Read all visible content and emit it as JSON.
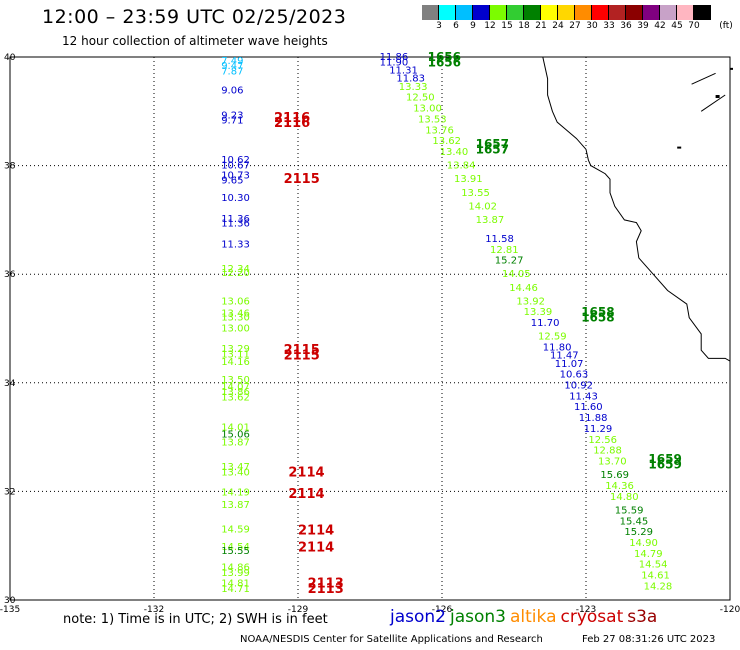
{
  "header": {
    "title": "12:00 – 23:59 UTC 02/25/2023",
    "subtitle": "12 hour collection of altimeter wave heights"
  },
  "scale": {
    "unit": "(ft)",
    "bins": [
      {
        "label": "3",
        "color": "#808080"
      },
      {
        "label": "6",
        "color": "#00ffff"
      },
      {
        "label": "9",
        "color": "#00bfff"
      },
      {
        "label": "12",
        "color": "#0000cd"
      },
      {
        "label": "15",
        "color": "#7cfc00"
      },
      {
        "label": "18",
        "color": "#32cd32"
      },
      {
        "label": "21",
        "color": "#008000"
      },
      {
        "label": "24",
        "color": "#ffff00"
      },
      {
        "label": "27",
        "color": "#ffd700"
      },
      {
        "label": "30",
        "color": "#ff8c00"
      },
      {
        "label": "33",
        "color": "#ff0000"
      },
      {
        "label": "36",
        "color": "#b22222"
      },
      {
        "label": "39",
        "color": "#8b0000"
      },
      {
        "label": "42",
        "color": "#800080"
      },
      {
        "label": "45",
        "color": "#c8a2c8"
      },
      {
        "label": "70",
        "color": "#ffb6c1"
      },
      {
        "label": "",
        "color": "#000000"
      }
    ]
  },
  "map": {
    "lon_ticks": [
      "-135",
      "-132",
      "-129",
      "-126",
      "-123",
      "-120"
    ],
    "lat_ticks": [
      "30",
      "32",
      "34",
      "36",
      "38",
      "40"
    ],
    "lon_range": [
      -135,
      -120
    ],
    "lat_range": [
      30,
      40
    ],
    "track_colors": {
      "jason2": "#0000cd",
      "jason3": "#008000",
      "altika": "#ff8c00",
      "cryosat": "#cc0000",
      "s3a": "#990000"
    },
    "western_track": [
      {
        "lon": -130.6,
        "lat": 39.93,
        "v": "7.49",
        "c": "#00bfff"
      },
      {
        "lon": -130.6,
        "lat": 39.83,
        "v": "9.47",
        "c": "#00bfff"
      },
      {
        "lon": -130.6,
        "lat": 39.73,
        "v": "7.87",
        "c": "#00bfff"
      },
      {
        "lon": -130.6,
        "lat": 39.38,
        "v": "9.06",
        "c": "#0000cd"
      },
      {
        "lon": -130.6,
        "lat": 38.92,
        "v": "9.23",
        "c": "#0000cd"
      },
      {
        "lon": -130.6,
        "lat": 38.83,
        "v": "9.71",
        "c": "#0000cd"
      },
      {
        "lon": -130.6,
        "lat": 38.1,
        "v": "10.62",
        "c": "#0000cd"
      },
      {
        "lon": -130.6,
        "lat": 38.0,
        "v": "10.67",
        "c": "#0000cd"
      },
      {
        "lon": -130.6,
        "lat": 37.82,
        "v": "10.73",
        "c": "#0000cd"
      },
      {
        "lon": -130.6,
        "lat": 37.73,
        "v": "9.65",
        "c": "#0000cd"
      },
      {
        "lon": -130.6,
        "lat": 37.4,
        "v": "10.30",
        "c": "#0000cd"
      },
      {
        "lon": -130.6,
        "lat": 37.02,
        "v": "11.36",
        "c": "#0000cd"
      },
      {
        "lon": -130.6,
        "lat": 36.93,
        "v": "11.36",
        "c": "#0000cd"
      },
      {
        "lon": -130.6,
        "lat": 36.55,
        "v": "11.33",
        "c": "#0000cd"
      },
      {
        "lon": -130.6,
        "lat": 36.1,
        "v": "12.34",
        "c": "#7cfc00"
      },
      {
        "lon": -130.6,
        "lat": 36.02,
        "v": "12.20",
        "c": "#7cfc00"
      },
      {
        "lon": -130.6,
        "lat": 35.5,
        "v": "13.06",
        "c": "#7cfc00"
      },
      {
        "lon": -130.6,
        "lat": 35.28,
        "v": "13.46",
        "c": "#7cfc00"
      },
      {
        "lon": -130.6,
        "lat": 35.2,
        "v": "13.30",
        "c": "#7cfc00"
      },
      {
        "lon": -130.6,
        "lat": 35.0,
        "v": "13.00",
        "c": "#7cfc00"
      },
      {
        "lon": -130.6,
        "lat": 34.62,
        "v": "13.29",
        "c": "#7cfc00"
      },
      {
        "lon": -130.6,
        "lat": 34.52,
        "v": "13.11",
        "c": "#7cfc00"
      },
      {
        "lon": -130.6,
        "lat": 34.38,
        "v": "14.16",
        "c": "#7cfc00"
      },
      {
        "lon": -130.6,
        "lat": 34.05,
        "v": "13.50",
        "c": "#7cfc00"
      },
      {
        "lon": -130.6,
        "lat": 33.92,
        "v": "14.07",
        "c": "#7cfc00"
      },
      {
        "lon": -130.6,
        "lat": 33.83,
        "v": "13.86",
        "c": "#7cfc00"
      },
      {
        "lon": -130.6,
        "lat": 33.73,
        "v": "13.62",
        "c": "#7cfc00"
      },
      {
        "lon": -130.6,
        "lat": 33.18,
        "v": "14.01",
        "c": "#7cfc00"
      },
      {
        "lon": -130.6,
        "lat": 33.05,
        "v": "15.06",
        "c": "#008000"
      },
      {
        "lon": -130.6,
        "lat": 32.9,
        "v": "13.87",
        "c": "#7cfc00"
      },
      {
        "lon": -130.6,
        "lat": 32.45,
        "v": "13.47",
        "c": "#7cfc00"
      },
      {
        "lon": -130.6,
        "lat": 32.35,
        "v": "13.40",
        "c": "#7cfc00"
      },
      {
        "lon": -130.6,
        "lat": 31.98,
        "v": "14.19",
        "c": "#7cfc00"
      },
      {
        "lon": -130.6,
        "lat": 31.75,
        "v": "13.87",
        "c": "#7cfc00"
      },
      {
        "lon": -130.6,
        "lat": 31.3,
        "v": "14.59",
        "c": "#7cfc00"
      },
      {
        "lon": -130.6,
        "lat": 30.98,
        "v": "14.54",
        "c": "#7cfc00"
      },
      {
        "lon": -130.6,
        "lat": 30.9,
        "v": "15.55",
        "c": "#008000"
      },
      {
        "lon": -130.6,
        "lat": 30.6,
        "v": "14.86",
        "c": "#7cfc00"
      },
      {
        "lon": -130.6,
        "lat": 30.5,
        "v": "13.99",
        "c": "#7cfc00"
      },
      {
        "lon": -130.6,
        "lat": 30.3,
        "v": "14.81",
        "c": "#7cfc00"
      },
      {
        "lon": -130.6,
        "lat": 30.2,
        "v": "14.71",
        "c": "#7cfc00"
      }
    ],
    "western_times": [
      {
        "lon": -129.5,
        "lat": 38.88,
        "t": "2116"
      },
      {
        "lon": -129.5,
        "lat": 38.78,
        "t": "2116"
      },
      {
        "lon": -129.3,
        "lat": 37.75,
        "t": "2115"
      },
      {
        "lon": -129.3,
        "lat": 34.6,
        "t": "2115"
      },
      {
        "lon": -129.3,
        "lat": 34.5,
        "t": "2115"
      },
      {
        "lon": -129.2,
        "lat": 32.35,
        "t": "2114"
      },
      {
        "lon": -129.2,
        "lat": 31.95,
        "t": "2114"
      },
      {
        "lon": -129.0,
        "lat": 31.28,
        "t": "2114"
      },
      {
        "lon": -129.0,
        "lat": 30.97,
        "t": "2114"
      },
      {
        "lon": -128.8,
        "lat": 30.3,
        "t": "2113"
      },
      {
        "lon": -128.8,
        "lat": 30.2,
        "t": "2113"
      }
    ],
    "diagonal_track": [
      {
        "lon": -127.3,
        "lat": 40.0,
        "v": "11.86",
        "c": "#0000cd"
      },
      {
        "lon": -127.3,
        "lat": 39.9,
        "v": "11.90",
        "c": "#0000cd"
      },
      {
        "lon": -127.1,
        "lat": 39.75,
        "v": "11.31",
        "c": "#0000cd"
      },
      {
        "lon": -126.95,
        "lat": 39.6,
        "v": "11.83",
        "c": "#0000cd"
      },
      {
        "lon": -126.9,
        "lat": 39.45,
        "v": "13.33",
        "c": "#7cfc00"
      },
      {
        "lon": -126.75,
        "lat": 39.25,
        "v": "12.50",
        "c": "#7cfc00"
      },
      {
        "lon": -126.6,
        "lat": 39.05,
        "v": "13.00",
        "c": "#7cfc00"
      },
      {
        "lon": -126.5,
        "lat": 38.85,
        "v": "13.53",
        "c": "#7cfc00"
      },
      {
        "lon": -126.35,
        "lat": 38.65,
        "v": "13.76",
        "c": "#7cfc00"
      },
      {
        "lon": -126.2,
        "lat": 38.45,
        "v": "13.62",
        "c": "#7cfc00"
      },
      {
        "lon": -126.05,
        "lat": 38.25,
        "v": "13.40",
        "c": "#7cfc00"
      },
      {
        "lon": -125.9,
        "lat": 38.0,
        "v": "13.84",
        "c": "#7cfc00"
      },
      {
        "lon": -125.75,
        "lat": 37.75,
        "v": "13.91",
        "c": "#7cfc00"
      },
      {
        "lon": -125.6,
        "lat": 37.5,
        "v": "13.55",
        "c": "#7cfc00"
      },
      {
        "lon": -125.45,
        "lat": 37.25,
        "v": "14.02",
        "c": "#7cfc00"
      },
      {
        "lon": -125.3,
        "lat": 37.0,
        "v": "13.87",
        "c": "#7cfc00"
      },
      {
        "lon": -125.1,
        "lat": 36.65,
        "v": "11.58",
        "c": "#0000cd"
      },
      {
        "lon": -125.0,
        "lat": 36.45,
        "v": "12.81",
        "c": "#7cfc00"
      },
      {
        "lon": -124.9,
        "lat": 36.25,
        "v": "15.27",
        "c": "#008000"
      },
      {
        "lon": -124.75,
        "lat": 36.0,
        "v": "14.05",
        "c": "#7cfc00"
      },
      {
        "lon": -124.6,
        "lat": 35.75,
        "v": "14.46",
        "c": "#7cfc00"
      },
      {
        "lon": -124.45,
        "lat": 35.5,
        "v": "13.92",
        "c": "#7cfc00"
      },
      {
        "lon": -124.3,
        "lat": 35.3,
        "v": "13.39",
        "c": "#7cfc00"
      },
      {
        "lon": -124.15,
        "lat": 35.1,
        "v": "11.70",
        "c": "#0000cd"
      },
      {
        "lon": -124.0,
        "lat": 34.85,
        "v": "12.59",
        "c": "#7cfc00"
      },
      {
        "lon": -123.9,
        "lat": 34.65,
        "v": "11.80",
        "c": "#0000cd"
      },
      {
        "lon": -123.75,
        "lat": 34.5,
        "v": "11.47",
        "c": "#0000cd"
      },
      {
        "lon": -123.65,
        "lat": 34.35,
        "v": "11.07",
        "c": "#0000cd"
      },
      {
        "lon": -123.55,
        "lat": 34.15,
        "v": "10.63",
        "c": "#0000cd"
      },
      {
        "lon": -123.45,
        "lat": 33.95,
        "v": "10.92",
        "c": "#0000cd"
      },
      {
        "lon": -123.35,
        "lat": 33.75,
        "v": "11.43",
        "c": "#0000cd"
      },
      {
        "lon": -123.25,
        "lat": 33.55,
        "v": "11.60",
        "c": "#0000cd"
      },
      {
        "lon": -123.15,
        "lat": 33.35,
        "v": "11.88",
        "c": "#0000cd"
      },
      {
        "lon": -123.05,
        "lat": 33.15,
        "v": "11.29",
        "c": "#0000cd"
      },
      {
        "lon": -122.95,
        "lat": 32.95,
        "v": "12.56",
        "c": "#7cfc00"
      },
      {
        "lon": -122.85,
        "lat": 32.75,
        "v": "12.88",
        "c": "#7cfc00"
      },
      {
        "lon": -122.75,
        "lat": 32.55,
        "v": "13.70",
        "c": "#7cfc00"
      },
      {
        "lon": -122.7,
        "lat": 32.3,
        "v": "15.69",
        "c": "#008000"
      },
      {
        "lon": -122.6,
        "lat": 32.1,
        "v": "14.36",
        "c": "#7cfc00"
      },
      {
        "lon": -122.5,
        "lat": 31.9,
        "v": "14.80",
        "c": "#7cfc00"
      },
      {
        "lon": -122.4,
        "lat": 31.65,
        "v": "15.59",
        "c": "#008000"
      },
      {
        "lon": -122.3,
        "lat": 31.45,
        "v": "15.45",
        "c": "#008000"
      },
      {
        "lon": -122.2,
        "lat": 31.25,
        "v": "15.29",
        "c": "#008000"
      },
      {
        "lon": -122.1,
        "lat": 31.05,
        "v": "14.90",
        "c": "#7cfc00"
      },
      {
        "lon": -122.0,
        "lat": 30.85,
        "v": "14.79",
        "c": "#7cfc00"
      },
      {
        "lon": -121.9,
        "lat": 30.65,
        "v": "14.54",
        "c": "#7cfc00"
      },
      {
        "lon": -121.85,
        "lat": 30.45,
        "v": "14.61",
        "c": "#7cfc00"
      },
      {
        "lon": -121.8,
        "lat": 30.25,
        "v": "14.28",
        "c": "#7cfc00"
      }
    ],
    "diagonal_times": [
      {
        "lon": -126.3,
        "lat": 40.0,
        "t": "1656"
      },
      {
        "lon": -126.3,
        "lat": 39.9,
        "t": "1656"
      },
      {
        "lon": -125.3,
        "lat": 38.4,
        "t": "1657"
      },
      {
        "lon": -125.3,
        "lat": 38.3,
        "t": "1657"
      },
      {
        "lon": -123.1,
        "lat": 35.3,
        "t": "1658"
      },
      {
        "lon": -123.1,
        "lat": 35.2,
        "t": "1658"
      },
      {
        "lon": -121.7,
        "lat": 32.6,
        "t": "1659"
      },
      {
        "lon": -121.7,
        "lat": 32.5,
        "t": "1659"
      }
    ]
  },
  "footer": {
    "note": "note:  1) Time is in UTC;  2) SWH is in feet",
    "legend": [
      {
        "name": "jason2",
        "color": "#0000cd"
      },
      {
        "name": "jason3",
        "color": "#008000"
      },
      {
        "name": "altika",
        "color": "#ff8c00"
      },
      {
        "name": "cryosat",
        "color": "#cc0000"
      },
      {
        "name": "s3a",
        "color": "#990000"
      }
    ],
    "credit": "NOAA/NESDIS Center for Satellite Applications and Research",
    "timestamp": "Feb 27 08:31:26 UTC 2023"
  }
}
